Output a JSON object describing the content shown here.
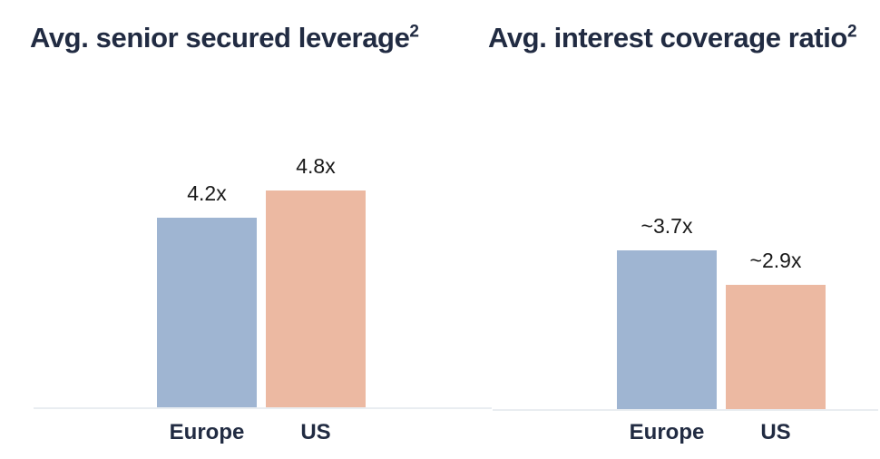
{
  "colors": {
    "background": "#FFFFFF",
    "title_text": "#212B42",
    "category_text": "#212B42",
    "value_label_text": "#1A1A1A",
    "axis_line": "#E9EDF1",
    "europe_bar": "#9FB5D2",
    "us_bar": "#ECB9A2"
  },
  "chart_data": [
    {
      "type": "bar",
      "title": "Avg. senior secured leverage",
      "title_superscript": "2",
      "categories": [
        "Europe",
        "US"
      ],
      "values": [
        4.2,
        4.8
      ],
      "value_labels": [
        "4.2x",
        "4.8x"
      ],
      "bar_colors": [
        "#9FB5D2",
        "#ECB9A2"
      ],
      "xlabel": "",
      "ylabel": "",
      "ylim": [
        0,
        6
      ],
      "grid": false,
      "legend": "none"
    },
    {
      "type": "bar",
      "title": "Avg. interest coverage ratio",
      "title_superscript": "2",
      "categories": [
        "Europe",
        "US"
      ],
      "values": [
        3.7,
        2.9
      ],
      "value_labels": [
        "~3.7x",
        "~2.9x"
      ],
      "bar_colors": [
        "#9FB5D2",
        "#ECB9A2"
      ],
      "xlabel": "",
      "ylabel": "",
      "ylim": [
        0,
        6.3
      ],
      "grid": false,
      "legend": "none"
    }
  ]
}
